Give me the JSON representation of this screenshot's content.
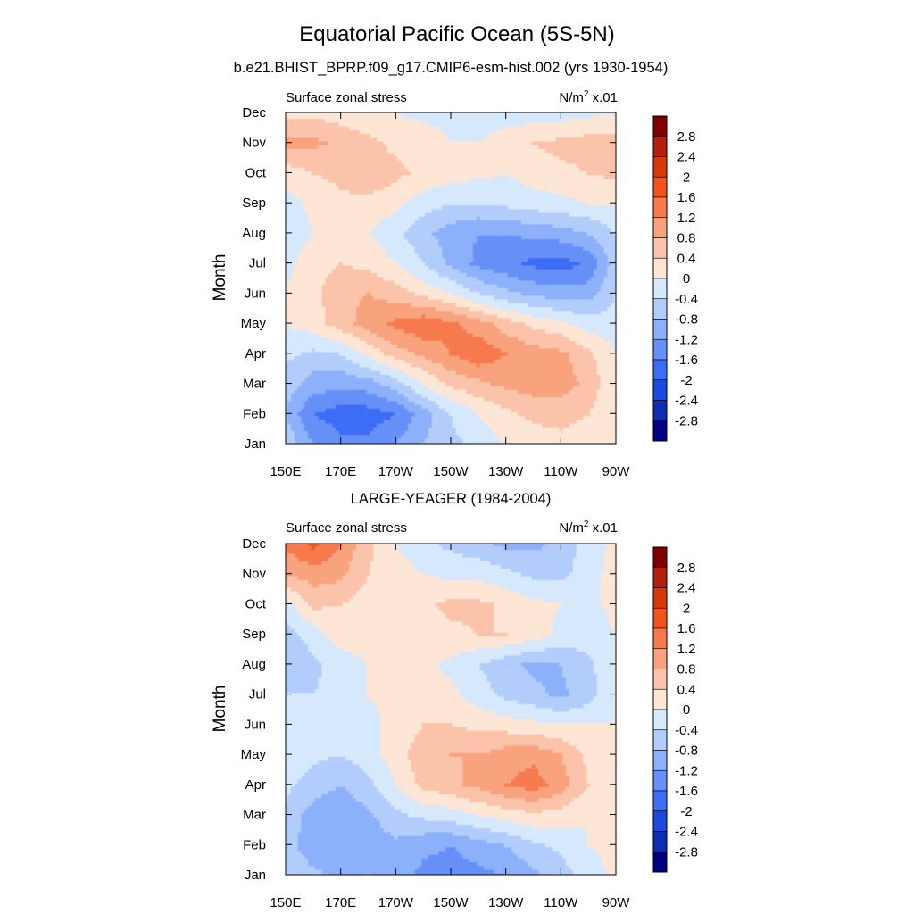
{
  "figure": {
    "title": "Equatorial Pacific Ocean (5S-5N)"
  },
  "colorbar": {
    "levels": [
      "2.8",
      "2.4",
      "2",
      "1.6",
      "1.2",
      "0.8",
      "0.4",
      "0",
      "-0.4",
      "-0.8",
      "-1.2",
      "-1.6",
      "-2",
      "-2.4",
      "-2.8"
    ],
    "colors": [
      "#800000",
      "#B0200C",
      "#D8380C",
      "#F2521E",
      "#F77A4F",
      "#F9A27E",
      "#FBC4AA",
      "#FDE6D6",
      "#D6E8FC",
      "#B2CDFB",
      "#8DB0FA",
      "#6690F8",
      "#3C6DF4",
      "#1A4ADE",
      "#0F2DB0",
      "#000080"
    ]
  },
  "chart_data": [
    {
      "type": "heatmap",
      "title": "b.e21.BHIST_BPRP.f09_g17.CMIP6-esm-hist.002 (yrs 1930-1954)",
      "left_label": "Surface zonal stress",
      "units": "N/m",
      "units_sup": "2",
      "units_scale": "x.01",
      "xlabel": "",
      "ylabel": "Month",
      "x_ticks": [
        "150E",
        "170E",
        "170W",
        "150W",
        "130W",
        "110W",
        "90W"
      ],
      "y_ticks": [
        "Jan",
        "Feb",
        "Mar",
        "Apr",
        "May",
        "Jun",
        "Jul",
        "Aug",
        "Sep",
        "Oct",
        "Nov",
        "Dec"
      ],
      "x_range": [
        150,
        270
      ],
      "y_range": [
        1,
        12
      ],
      "columns_lon": [
        150,
        160,
        170,
        180,
        190,
        200,
        210,
        220,
        230,
        240,
        250,
        260,
        270
      ],
      "values": [
        [
          -0.5,
          -1.2,
          -1.5,
          -1.5,
          -1.2,
          -0.8,
          -0.5,
          -0.3,
          0.0,
          0.2,
          0.3,
          0.2,
          0.0
        ],
        [
          -0.8,
          -1.6,
          -1.8,
          -1.8,
          -1.6,
          -1.0,
          -0.4,
          0.0,
          0.3,
          0.5,
          0.5,
          0.4,
          0.0
        ],
        [
          -0.6,
          -1.0,
          -1.1,
          -1.0,
          -0.6,
          0.0,
          0.5,
          0.7,
          0.9,
          1.0,
          1.0,
          0.7,
          0.0
        ],
        [
          -0.3,
          -0.5,
          -0.4,
          0.1,
          0.6,
          0.9,
          1.2,
          1.5,
          1.2,
          1.0,
          0.9,
          0.5,
          0.0
        ],
        [
          0.0,
          0.2,
          0.6,
          1.0,
          1.3,
          1.5,
          1.3,
          1.0,
          0.6,
          0.3,
          0.1,
          -0.2,
          -0.2
        ],
        [
          0.0,
          0.3,
          0.7,
          0.8,
          0.6,
          0.3,
          0.0,
          -0.4,
          -0.7,
          -0.9,
          -1.0,
          -1.0,
          -0.4
        ],
        [
          -0.1,
          0.2,
          0.4,
          0.3,
          0.0,
          -0.4,
          -0.9,
          -1.3,
          -1.5,
          -1.7,
          -1.8,
          -1.5,
          -0.6
        ],
        [
          -0.2,
          0.0,
          0.1,
          0.0,
          -0.3,
          -0.7,
          -1.0,
          -1.2,
          -1.2,
          -1.1,
          -1.0,
          -0.8,
          -0.4
        ],
        [
          -0.2,
          0.1,
          0.3,
          0.3,
          0.1,
          -0.2,
          -0.4,
          -0.4,
          -0.3,
          -0.2,
          -0.1,
          0.0,
          0.0
        ],
        [
          0.2,
          0.4,
          0.5,
          0.7,
          0.5,
          0.3,
          0.2,
          0.1,
          0.0,
          0.2,
          0.3,
          0.4,
          0.5
        ],
        [
          0.9,
          0.9,
          0.7,
          0.5,
          0.3,
          0.2,
          0.0,
          0.0,
          0.2,
          0.4,
          0.5,
          0.6,
          0.6
        ],
        [
          0.3,
          0.3,
          0.2,
          0.1,
          0.0,
          -0.1,
          -0.1,
          -0.2,
          -0.2,
          -0.2,
          -0.2,
          -0.1,
          0.0
        ]
      ]
    },
    {
      "type": "heatmap",
      "title": "LARGE-YEAGER (1984-2004)",
      "left_label": "Surface zonal stress",
      "units": "N/m",
      "units_sup": "2",
      "units_scale": "x.01",
      "xlabel": "",
      "ylabel": "Month",
      "x_ticks": [
        "150E",
        "170E",
        "170W",
        "150W",
        "130W",
        "110W",
        "90W"
      ],
      "y_ticks": [
        "Jan",
        "Feb",
        "Mar",
        "Apr",
        "May",
        "Jun",
        "Jul",
        "Aug",
        "Sep",
        "Oct",
        "Nov",
        "Dec"
      ],
      "x_range": [
        150,
        270
      ],
      "y_range": [
        1,
        12
      ],
      "columns_lon": [
        150,
        160,
        170,
        180,
        190,
        200,
        210,
        220,
        230,
        240,
        250,
        260,
        270
      ],
      "values": [
        [
          -0.4,
          -0.7,
          -0.9,
          -0.8,
          -1.0,
          -1.3,
          -1.4,
          -1.3,
          -1.2,
          -0.9,
          -0.6,
          -0.2,
          0.1
        ],
        [
          -0.6,
          -1.1,
          -1.2,
          -1.0,
          -0.9,
          -1.1,
          -1.2,
          -1.0,
          -0.8,
          -0.5,
          -0.3,
          0.0,
          0.1
        ],
        [
          -0.5,
          -1.0,
          -1.1,
          -0.9,
          -0.5,
          -0.3,
          -0.2,
          0.0,
          0.2,
          0.3,
          0.2,
          0.0,
          0.1
        ],
        [
          -0.3,
          -0.6,
          -0.8,
          -0.5,
          0.0,
          0.5,
          0.7,
          0.9,
          1.2,
          1.4,
          1.0,
          0.4,
          0.1
        ],
        [
          -0.1,
          -0.3,
          -0.4,
          -0.2,
          0.2,
          0.7,
          0.8,
          0.8,
          1.0,
          1.1,
          0.8,
          0.3,
          0.1
        ],
        [
          -0.1,
          -0.3,
          -0.3,
          -0.1,
          0.1,
          0.4,
          0.4,
          0.3,
          0.2,
          0.1,
          0.0,
          0.0,
          0.0
        ],
        [
          -0.4,
          -0.4,
          -0.3,
          0.0,
          0.1,
          0.2,
          0.1,
          -0.2,
          -0.5,
          -0.7,
          -0.9,
          -0.6,
          0.0
        ],
        [
          -0.8,
          -0.5,
          -0.2,
          0.0,
          0.1,
          0.1,
          -0.1,
          -0.4,
          -0.7,
          -0.9,
          -0.8,
          -0.5,
          0.0
        ],
        [
          -0.6,
          -0.2,
          0.2,
          0.2,
          0.1,
          0.1,
          0.3,
          0.4,
          0.4,
          0.2,
          -0.1,
          -0.2,
          0.0
        ],
        [
          -0.2,
          0.5,
          0.4,
          0.2,
          0.2,
          0.3,
          0.5,
          0.5,
          0.3,
          0.1,
          0.0,
          -0.1,
          0.1
        ],
        [
          0.8,
          1.0,
          0.9,
          0.4,
          0.2,
          0.0,
          -0.1,
          -0.1,
          -0.3,
          -0.5,
          -0.5,
          -0.2,
          0.2
        ],
        [
          1.3,
          1.7,
          1.2,
          0.5,
          0.0,
          -0.3,
          -0.5,
          -0.7,
          -0.9,
          -0.9,
          -0.7,
          -0.2,
          0.1
        ]
      ]
    }
  ]
}
